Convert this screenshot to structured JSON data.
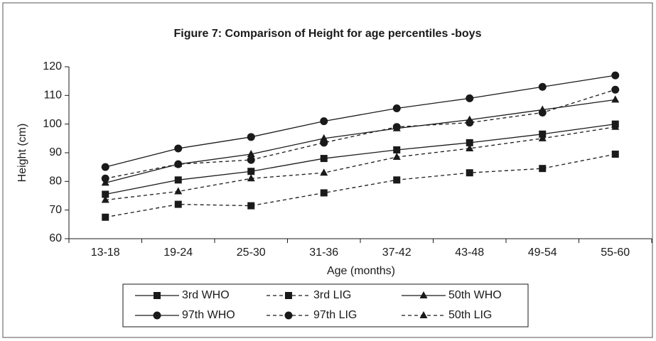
{
  "chart_data": {
    "type": "line",
    "title": "Figure 7: Comparison of Height for age percentiles -boys",
    "x_label": "Age (months)",
    "y_label": "Height (cm)",
    "categories": [
      "13-18",
      "19-24",
      "25-30",
      "31-36",
      "37-42",
      "43-48",
      "49-54",
      "55-60"
    ],
    "ylim": [
      60,
      120
    ],
    "yticks": [
      60,
      70,
      80,
      90,
      100,
      110,
      120
    ],
    "grid": false,
    "series": [
      {
        "name": "3rd WHO",
        "color": "#1a1a1a",
        "marker": "square",
        "dashed": false,
        "values": [
          75.5,
          80.5,
          83.5,
          88,
          91,
          93.5,
          96.5,
          100
        ]
      },
      {
        "name": "3rd LIG",
        "color": "#1a1a1a",
        "marker": "square",
        "dashed": true,
        "values": [
          67.5,
          72,
          71.5,
          76,
          80.5,
          83,
          84.5,
          89.5
        ]
      },
      {
        "name": "50th WHO",
        "color": "#1a1a1a",
        "marker": "triangle",
        "dashed": false,
        "values": [
          79.5,
          86,
          89.5,
          95,
          98.5,
          101.5,
          105,
          108.5
        ]
      },
      {
        "name": "97th WHO",
        "color": "#1a1a1a",
        "marker": "circle",
        "dashed": false,
        "values": [
          85,
          91.5,
          95.5,
          101,
          105.5,
          109,
          113,
          117
        ]
      },
      {
        "name": "97th LIG",
        "color": "#1a1a1a",
        "marker": "circle",
        "dashed": true,
        "values": [
          81,
          86,
          87.5,
          93.5,
          99,
          100.5,
          104,
          112
        ]
      },
      {
        "name": "50th LIG",
        "color": "#1a1a1a",
        "marker": "triangle",
        "dashed": true,
        "values": [
          73.5,
          76.5,
          81,
          83,
          88.5,
          91.5,
          95,
          99
        ]
      }
    ]
  }
}
